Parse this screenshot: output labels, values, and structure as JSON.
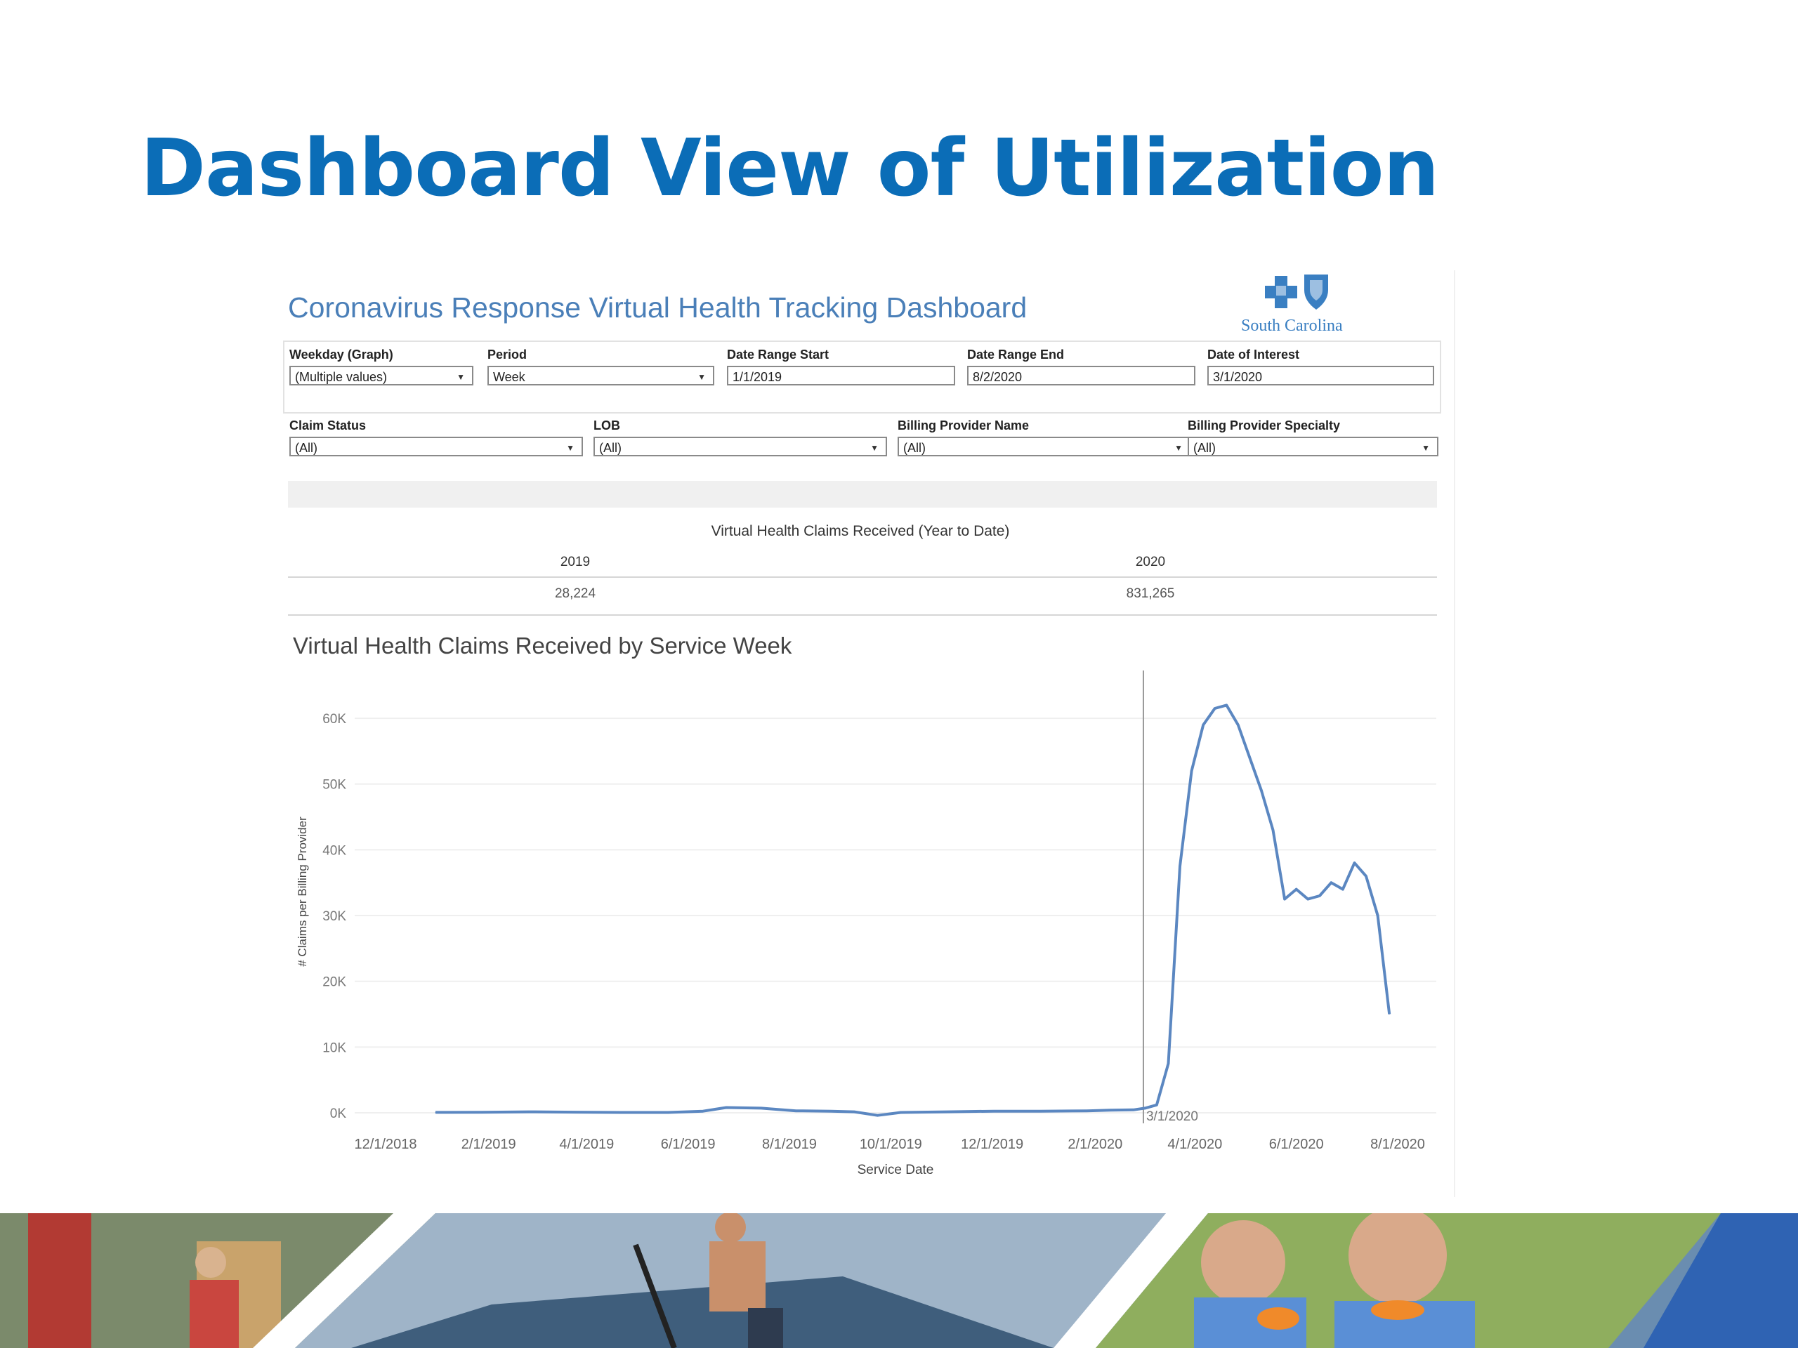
{
  "slide": {
    "title": "Dashboard View of Utilization"
  },
  "dashboard": {
    "title": "Coronavirus Response Virtual Health Tracking Dashboard",
    "logo_text": "South Carolina",
    "filters_row1": [
      {
        "label": "Weekday (Graph)",
        "value": "(Multiple values)",
        "type": "dropdown"
      },
      {
        "label": "Period",
        "value": "Week",
        "type": "dropdown"
      },
      {
        "label": "Date Range Start",
        "value": "1/1/2019",
        "type": "text"
      },
      {
        "label": "Date Range End",
        "value": "8/2/2020",
        "type": "text"
      },
      {
        "label": "Date of Interest",
        "value": "3/1/2020",
        "type": "text"
      }
    ],
    "filters_row2": [
      {
        "label": "Claim Status",
        "value": "(All)",
        "type": "dropdown"
      },
      {
        "label": "LOB",
        "value": "(All)",
        "type": "dropdown"
      },
      {
        "label": "Billing Provider Name",
        "value": "(All)",
        "type": "dropdown"
      },
      {
        "label": "Billing Provider Specialty",
        "value": "(All)",
        "type": "dropdown"
      }
    ],
    "ytd": {
      "title": "Virtual Health Claims Received (Year to Date)",
      "columns": [
        {
          "year": "2019",
          "value": "28,224"
        },
        {
          "year": "2020",
          "value": "831,265"
        }
      ]
    }
  },
  "chart_data": {
    "type": "line",
    "title": "Virtual Health Claims Received by Service Week",
    "xlabel": "Service Date",
    "ylabel": "# Claims per Billing Provider",
    "x_ticks": [
      "12/1/2018",
      "2/1/2019",
      "4/1/2019",
      "6/1/2019",
      "8/1/2019",
      "10/1/2019",
      "12/1/2019",
      "2/1/2020",
      "4/1/2020",
      "6/1/2020",
      "8/1/2020"
    ],
    "y_ticks": [
      "0K",
      "10K",
      "20K",
      "30K",
      "40K",
      "50K",
      "60K"
    ],
    "ylim": [
      0,
      63000
    ],
    "reference_line": {
      "date": "3/1/2020",
      "label": "3/1/2020"
    },
    "grid": true,
    "color": "#5b87c1",
    "series": [
      {
        "points": [
          [
            "2018-12-31",
            60
          ],
          [
            "2019-01-28",
            80
          ],
          [
            "2019-02-25",
            150
          ],
          [
            "2019-03-25",
            100
          ],
          [
            "2019-04-22",
            50
          ],
          [
            "2019-05-20",
            50
          ],
          [
            "2019-06-10",
            250
          ],
          [
            "2019-06-24",
            800
          ],
          [
            "2019-07-15",
            700
          ],
          [
            "2019-08-05",
            300
          ],
          [
            "2019-08-26",
            250
          ],
          [
            "2019-09-09",
            150
          ],
          [
            "2019-09-23",
            -400
          ],
          [
            "2019-10-07",
            50
          ],
          [
            "2019-11-04",
            150
          ],
          [
            "2019-12-02",
            250
          ],
          [
            "2019-12-30",
            250
          ],
          [
            "2020-01-27",
            300
          ],
          [
            "2020-02-10",
            400
          ],
          [
            "2020-02-24",
            450
          ],
          [
            "2020-03-02",
            700
          ],
          [
            "2020-03-09",
            1200
          ],
          [
            "2020-03-16",
            7500
          ],
          [
            "2020-03-23",
            37500
          ],
          [
            "2020-03-30",
            52000
          ],
          [
            "2020-04-06",
            59000
          ],
          [
            "2020-04-13",
            61500
          ],
          [
            "2020-04-20",
            62000
          ],
          [
            "2020-04-27",
            59000
          ],
          [
            "2020-05-04",
            54000
          ],
          [
            "2020-05-11",
            49000
          ],
          [
            "2020-05-18",
            43000
          ],
          [
            "2020-05-25",
            32500
          ],
          [
            "2020-06-01",
            34000
          ],
          [
            "2020-06-08",
            32500
          ],
          [
            "2020-06-15",
            33000
          ],
          [
            "2020-06-22",
            35000
          ],
          [
            "2020-06-29",
            34000
          ],
          [
            "2020-07-06",
            38000
          ],
          [
            "2020-07-13",
            36000
          ],
          [
            "2020-07-20",
            30000
          ],
          [
            "2020-07-27",
            15000
          ]
        ]
      }
    ]
  }
}
